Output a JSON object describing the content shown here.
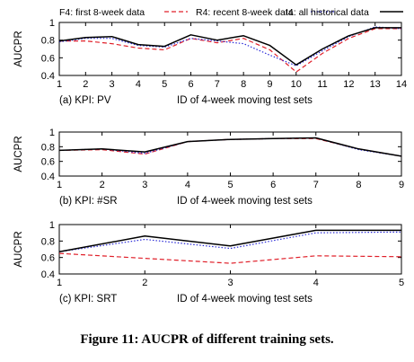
{
  "legend": [
    {
      "label": "F4: first 8-week data",
      "style": "dash",
      "color": "#e0202a"
    },
    {
      "label": "R4: recent 8-week data",
      "style": "dot",
      "color": "#2a2ad8"
    },
    {
      "label": "I4: all historical data",
      "style": "solid",
      "color": "#000000"
    }
  ],
  "caption": "Figure 11: AUCPR of different training sets.",
  "chart_data": [
    {
      "type": "line",
      "panel_label": "(a) KPI: PV",
      "xlabel": "ID of 4-week moving test sets",
      "ylabel": "AUCPR",
      "ylim": [
        0.4,
        1.0
      ],
      "yticks": [
        0.4,
        0.6,
        0.8,
        1
      ],
      "x": [
        1,
        2,
        3,
        4,
        5,
        6,
        7,
        8,
        9,
        10,
        11,
        12,
        13,
        14
      ],
      "series": [
        {
          "name": "F4: first 8-week data",
          "values": [
            0.79,
            0.79,
            0.76,
            0.71,
            0.69,
            0.82,
            0.77,
            0.82,
            0.69,
            0.44,
            0.65,
            0.82,
            0.93,
            0.93
          ]
        },
        {
          "name": "R4: recent 8-week data",
          "values": [
            0.78,
            0.82,
            0.82,
            0.74,
            0.72,
            0.82,
            0.79,
            0.76,
            0.63,
            0.51,
            0.68,
            0.84,
            0.95,
            0.93
          ]
        },
        {
          "name": "I4: all historical data",
          "values": [
            0.79,
            0.83,
            0.84,
            0.75,
            0.73,
            0.86,
            0.8,
            0.85,
            0.74,
            0.52,
            0.7,
            0.85,
            0.94,
            0.94
          ]
        }
      ]
    },
    {
      "type": "line",
      "panel_label": "(b) KPI: #SR",
      "xlabel": "ID of 4-week moving test sets",
      "ylabel": "AUCPR",
      "ylim": [
        0.4,
        1.0
      ],
      "yticks": [
        0.4,
        0.6,
        0.8,
        1
      ],
      "x": [
        1,
        2,
        3,
        4,
        5,
        6,
        7,
        8,
        9
      ],
      "series": [
        {
          "name": "F4: first 8-week data",
          "values": [
            0.75,
            0.76,
            0.7,
            0.87,
            0.9,
            0.91,
            0.91,
            0.77,
            0.67
          ]
        },
        {
          "name": "R4: recent 8-week data",
          "values": [
            0.75,
            0.77,
            0.71,
            0.87,
            0.9,
            0.91,
            0.92,
            0.76,
            0.67
          ]
        },
        {
          "name": "I4: all historical data",
          "values": [
            0.75,
            0.77,
            0.73,
            0.87,
            0.9,
            0.91,
            0.92,
            0.77,
            0.67
          ]
        }
      ]
    },
    {
      "type": "line",
      "panel_label": "(c) KPI: SRT",
      "xlabel": "ID of 4-week moving test sets",
      "ylabel": "AUCPR",
      "ylim": [
        0.4,
        1.0
      ],
      "yticks": [
        0.4,
        0.6,
        0.8,
        1
      ],
      "x": [
        1,
        2,
        3,
        4,
        5
      ],
      "series": [
        {
          "name": "F4: first 8-week data",
          "values": [
            0.65,
            0.59,
            0.53,
            0.62,
            0.61
          ]
        },
        {
          "name": "R4: recent 8-week data",
          "values": [
            0.67,
            0.82,
            0.71,
            0.9,
            0.91
          ]
        },
        {
          "name": "I4: all historical data",
          "values": [
            0.67,
            0.86,
            0.74,
            0.93,
            0.93
          ]
        }
      ]
    }
  ]
}
